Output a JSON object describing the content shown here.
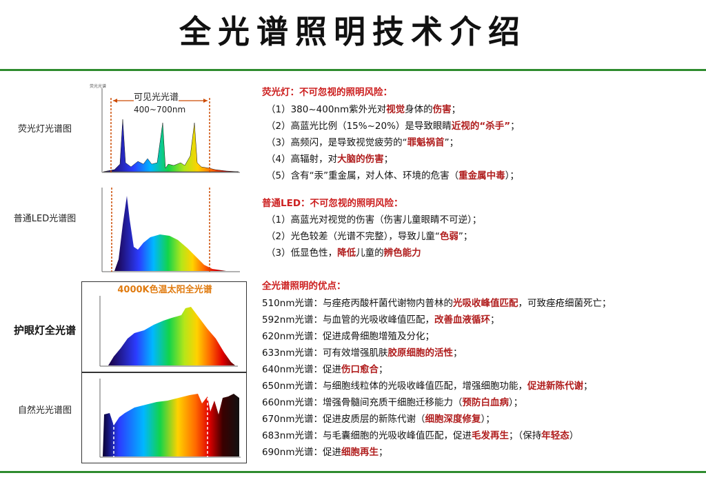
{
  "page": {
    "title": "全光谱照明技术介绍"
  },
  "left": {
    "fluorescent": {
      "label": "荧光灯光谱图",
      "tiny_caption": "荧光光谱",
      "visible_label": "可见光光谱",
      "range_label": "400~700nm"
    },
    "led": {
      "label": "普通LED光谱图"
    },
    "eye_lamp": {
      "label": "护眼灯全光谱",
      "caption": "4000K色温太阳全光谱"
    },
    "natural": {
      "label": "自然光光谱图"
    }
  },
  "fluorescent_section": {
    "head": "荧光灯：不可忽视的照明风险：",
    "items": [
      {
        "a": "（1）380~400nm紫外光对",
        "b": "视觉",
        "c": "身体的",
        "d": "伤害",
        "e": "；"
      },
      {
        "a": "（2）高蓝光比例（15%~20%）是导致眼睛",
        "b": "近视的",
        "c": "“杀手”",
        "d": "",
        "e": "；"
      },
      {
        "a": "（3）高频闪，是导致视觉疲劳的“",
        "b": "罪魁祸首",
        "c": "”；",
        "d": "",
        "e": ""
      },
      {
        "a": "（4）高辐射，对",
        "b": "大脑的伤害",
        "c": "；",
        "d": "",
        "e": ""
      },
      {
        "a": "（5）含有“汞”重金属，对人体、环境的危害（",
        "b": "重金属中毒",
        "c": "）；",
        "d": "",
        "e": ""
      }
    ]
  },
  "led_section": {
    "head": "普通LED：不可忽视的照明风险：",
    "items": [
      {
        "a": "（1）高蓝光对视觉的伤害（伤害儿童眼睛不可逆）；",
        "b": "",
        "c": ""
      },
      {
        "a": "（2）光色较差（光谱不完整），导致儿童“",
        "b": "色弱",
        "c": "”；"
      },
      {
        "a": "（3）低显色性，",
        "b": "降低",
        "c": "儿童的",
        "d": "辨色能力"
      }
    ]
  },
  "benefit_section": {
    "head": "全光谱照明的优点：",
    "items": [
      {
        "a": "510nm光谱：与痤疮丙酸杆菌代谢物内普林的",
        "b": "光吸收峰值匹配",
        "c": "，可致痤疮细菌死亡；"
      },
      {
        "a": "592nm光谱：与血管的光吸收峰值匹配，",
        "b": "改善血液循环",
        "c": "；"
      },
      {
        "a": "620nm光谱：促进成骨细胞增殖及分化；",
        "b": "",
        "c": ""
      },
      {
        "a": "633nm光谱：可有效增强肌肤",
        "b": "胶原细胞的活性",
        "c": "；"
      },
      {
        "a": "640nm光谱：促进",
        "b": "伤口愈合",
        "c": "；"
      },
      {
        "a": "650nm光谱：与细胞线粒体的光吸收峰值匹配，增强细胞功能，",
        "b": "促进新陈代谢",
        "c": "；"
      },
      {
        "a": "660nm光谱：增强骨髓间充质干细胞迁移能力（",
        "b": "预防白血病",
        "c": "）；"
      },
      {
        "a": "670nm光谱：促进皮质层的新陈代谢（",
        "b": "细胞深度修复",
        "c": "）；"
      },
      {
        "a": "683nm光谱：与毛囊细胞的光吸收峰值匹配，促进",
        "b": "毛发再生",
        "c": "；（保持",
        "d": "年轻态",
        "e": "）"
      },
      {
        "a": "690nm光谱：促进",
        "b": "细胞再生",
        "c": "；"
      }
    ]
  },
  "colors": {
    "rule": "#2e8b2e",
    "accent_red": "#cc1f1f",
    "range_orange": "#e07b10"
  }
}
